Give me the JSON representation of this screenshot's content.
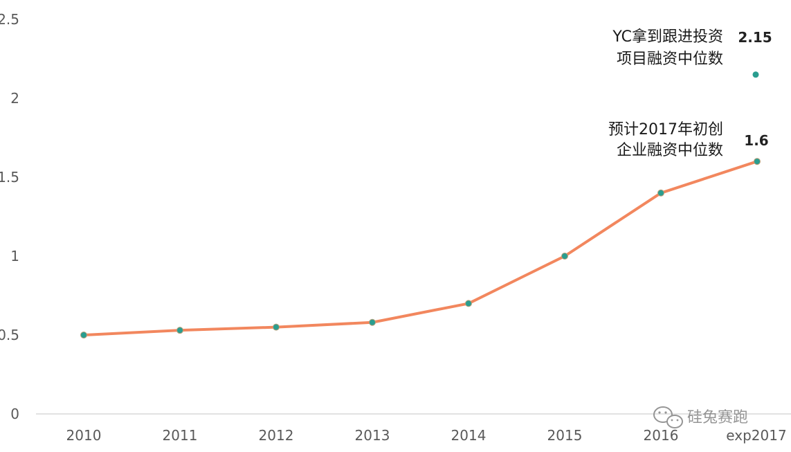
{
  "chart_data": {
    "type": "line",
    "categories": [
      "2010",
      "2011",
      "2012",
      "2013",
      "2014",
      "2015",
      "2016",
      "exp2017"
    ],
    "series": [
      {
        "values": [
          0.5,
          0.53,
          0.55,
          0.58,
          0.7,
          1.0,
          1.4,
          1.6
        ]
      }
    ],
    "extra_point": {
      "category": "exp2017",
      "value": 2.15
    },
    "yticks": [
      "0",
      "0.5",
      "1",
      "1.5",
      "2",
      "2.5"
    ],
    "ylim": [
      0,
      2.5
    ],
    "grid": false,
    "annotations": [
      {
        "lines": [
          "预计2017年初创",
          "企业融资中位数"
        ],
        "value_label": "1.6"
      },
      {
        "lines": [
          "YC拿到跟进投资",
          "项目融资中位数"
        ],
        "value_label": "2.15"
      }
    ],
    "colors": {
      "line": "#f2875e",
      "marker": "#2a9d8f",
      "axis": "#d9d9d9"
    }
  },
  "watermark": {
    "text": "硅兔赛跑",
    "icon": "wechat-icon"
  }
}
